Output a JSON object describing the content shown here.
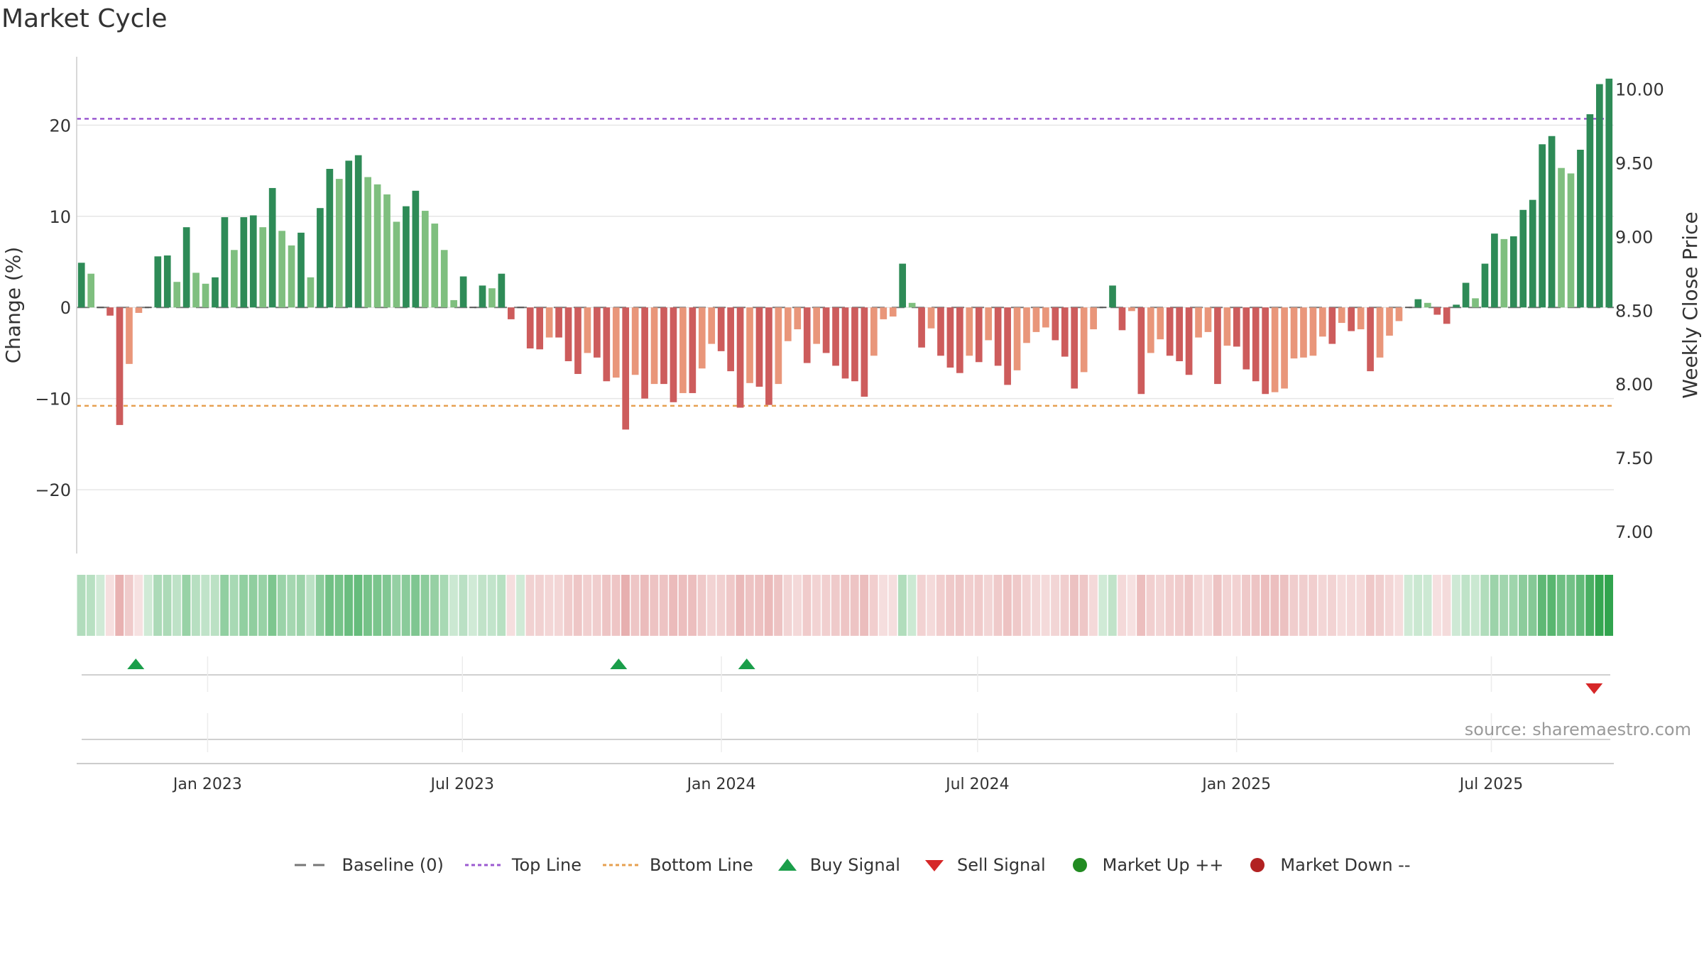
{
  "title": "Market Cycle",
  "source": "source: sharemaestro.com",
  "colors": {
    "up_strong": "#2e8b57",
    "up_weak": "#7fbf7f",
    "down_strong": "#cd5c5c",
    "down_weak": "#e9967a",
    "top_line": "#9b59d0",
    "bottom_line": "#e6a050",
    "buy": "#1a9e4a",
    "sell": "#d62728",
    "market_up": "#228b22",
    "market_down": "#b22222"
  },
  "legend": {
    "baseline": "Baseline (0)",
    "top_line": "Top Line",
    "bottom_line": "Bottom Line",
    "buy": "Buy Signal",
    "sell": "Sell Signal",
    "market_up": "Market Up ++",
    "market_down": "Market Down --"
  },
  "chart_data": {
    "type": "bar",
    "ylabel_left": "Change (%)",
    "ylabel_right": "Weekly Close Price",
    "ylim_left": [
      -27,
      27.5
    ],
    "yticks_left": [
      20,
      10,
      0,
      -10,
      -20
    ],
    "ytick_labels_left": [
      "20",
      "10",
      "0",
      "−10",
      "−20"
    ],
    "ylim_right": [
      6.85,
      10.22
    ],
    "yticks_right": [
      10.0,
      9.5,
      9.0,
      8.5,
      8.0,
      7.5,
      7.0
    ],
    "ytick_labels_right": [
      "10.00",
      "9.50",
      "9.00",
      "8.50",
      "8.00",
      "7.50",
      "7.00"
    ],
    "x_start": "2022-09-30",
    "x_end": "2025-09-26",
    "xticks": [
      "2023-01-01",
      "2023-07-01",
      "2024-01-01",
      "2024-07-01",
      "2025-01-01",
      "2025-07-01"
    ],
    "xtick_labels": [
      "Jan 2023",
      "Jul 2023",
      "Jan 2024",
      "Jul 2024",
      "Jan 2025",
      "Jul 2025"
    ],
    "top_line": 20.7,
    "bottom_line": -10.8,
    "baseline": 0,
    "grid": true,
    "legend_position": "bottom",
    "values": [
      4.9,
      3.7,
      0,
      -0.9,
      -12.9,
      -6.2,
      -0.6,
      0,
      5.6,
      5.7,
      2.8,
      8.8,
      3.8,
      2.6,
      3.3,
      9.9,
      6.3,
      9.9,
      10.1,
      8.8,
      13.1,
      8.4,
      6.8,
      8.2,
      3.3,
      10.9,
      15.2,
      14.1,
      16.1,
      16.7,
      14.3,
      13.5,
      12.4,
      9.4,
      11.1,
      12.8,
      10.6,
      9.2,
      6.3,
      0.8,
      3.4,
      0,
      2.4,
      2.1,
      3.7,
      -1.3,
      0,
      -4.5,
      -4.6,
      -3.3,
      -3.3,
      -5.9,
      -7.3,
      -5.0,
      -5.5,
      -8.1,
      -7.7,
      -13.4,
      -7.4,
      -10.0,
      -8.4,
      -8.4,
      -10.4,
      -9.4,
      -9.4,
      -6.7,
      -4.0,
      -4.8,
      -7.0,
      -11.0,
      -8.3,
      -8.7,
      -10.7,
      -8.4,
      -3.7,
      -2.4,
      -6.1,
      -4.0,
      -5.0,
      -6.4,
      -7.8,
      -8.1,
      -9.8,
      -5.3,
      -1.3,
      -1.0,
      4.8,
      0.5,
      -4.4,
      -2.3,
      -5.3,
      -6.6,
      -7.2,
      -5.3,
      -6.0,
      -3.6,
      -6.4,
      -8.5,
      -6.9,
      -3.9,
      -2.7,
      -2.2,
      -3.6,
      -5.4,
      -8.9,
      -7.1,
      -2.4,
      0,
      2.4,
      -2.5,
      -0.4,
      -9.5,
      -5.0,
      -3.5,
      -5.3,
      -5.9,
      -7.4,
      -3.3,
      -2.7,
      -8.4,
      -4.2,
      -4.3,
      -6.8,
      -8.1,
      -9.5,
      -9.3,
      -8.9,
      -5.6,
      -5.5,
      -5.3,
      -3.2,
      -4.0,
      -1.7,
      -2.6,
      -2.4,
      -7.0,
      -5.5,
      -3.1,
      -1.5,
      0,
      0.9,
      0.5,
      -0.8,
      -1.8,
      0.3,
      2.7,
      1.0,
      4.8,
      8.1,
      7.5,
      7.8,
      10.7,
      11.8,
      17.9,
      18.8,
      15.3,
      14.7,
      17.3,
      21.2,
      24.5,
      25.1
    ],
    "buy_signals": [
      "2022-11-11",
      "2023-10-20",
      "2024-01-19"
    ],
    "sell_signals": [
      "2025-09-12"
    ]
  }
}
